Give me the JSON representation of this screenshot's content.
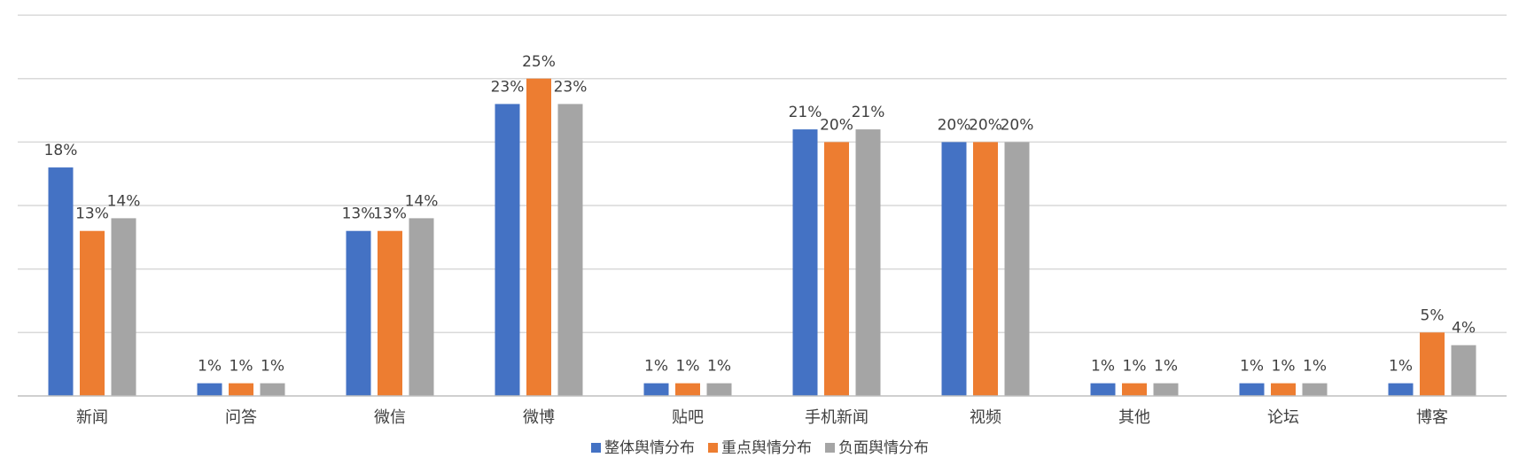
{
  "chart_data": {
    "type": "bar",
    "title": "",
    "xlabel": "",
    "ylabel": "",
    "ylim": [
      0,
      30
    ],
    "grid": true,
    "legend_position": "bottom",
    "categories": [
      "新闻",
      "问答",
      "微信",
      "微博",
      "贴吧",
      "手机新闻",
      "视频",
      "其他",
      "论坛",
      "博客"
    ],
    "series": [
      {
        "name": "整体舆情分布",
        "color": "#4472C4",
        "values": [
          18,
          1,
          13,
          23,
          1,
          21,
          20,
          1,
          1,
          1
        ],
        "labels": [
          "18%",
          "1%",
          "13%",
          "23%",
          "1%",
          "21%",
          "20%",
          "1%",
          "1%",
          "1%"
        ]
      },
      {
        "name": "重点舆情分布",
        "color": "#ED7D31",
        "values": [
          13,
          1,
          13,
          25,
          1,
          20,
          20,
          1,
          1,
          5
        ],
        "labels": [
          "13%",
          "1%",
          "13%",
          "25%",
          "1%",
          "20%",
          "20%",
          "1%",
          "1%",
          "5%"
        ]
      },
      {
        "name": "负面舆情分布",
        "color": "#A5A5A5",
        "values": [
          14,
          1,
          14,
          23,
          1,
          21,
          20,
          1,
          1,
          4
        ],
        "labels": [
          "14%",
          "1%",
          "14%",
          "23%",
          "1%",
          "21%",
          "20%",
          "1%",
          "1%",
          "4%"
        ]
      }
    ]
  }
}
